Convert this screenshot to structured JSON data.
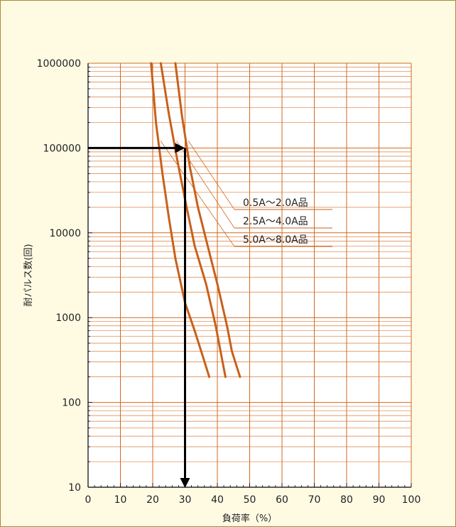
{
  "chart_data": {
    "type": "line",
    "xlabel": "負荷率（%）",
    "ylabel": "耐パルス数(回)",
    "xlim": [
      0,
      100
    ],
    "ylim": [
      10,
      1000000
    ],
    "y_scale": "log",
    "grid": true,
    "x_ticks": [
      "0",
      "10",
      "20",
      "30",
      "40",
      "50",
      "60",
      "70",
      "80",
      "90",
      "100"
    ],
    "y_ticks": [
      "10",
      "100",
      "1000",
      "10000",
      "100000",
      "1000000"
    ],
    "series": [
      {
        "name": "5.0A～8.0A品",
        "color": "#c8601c",
        "points": [
          [
            19.5,
            1000000
          ],
          [
            21,
            200000
          ],
          [
            23,
            50000
          ],
          [
            25,
            15000
          ],
          [
            27,
            5000
          ],
          [
            30,
            1500
          ],
          [
            33,
            700
          ],
          [
            35.5,
            350
          ],
          [
            37.5,
            200
          ]
        ]
      },
      {
        "name": "2.5A～4.0A品",
        "color": "#c8601c",
        "points": [
          [
            22.5,
            1000000
          ],
          [
            25,
            250000
          ],
          [
            28,
            60000
          ],
          [
            30.5,
            20000
          ],
          [
            33,
            7000
          ],
          [
            36.5,
            2500
          ],
          [
            39.5,
            800
          ],
          [
            41,
            400
          ],
          [
            42.5,
            200
          ]
        ]
      },
      {
        "name": "0.5A～2.0A品",
        "color": "#c8601c",
        "points": [
          [
            27,
            1000000
          ],
          [
            29,
            250000
          ],
          [
            31.5,
            60000
          ],
          [
            34,
            20000
          ],
          [
            37,
            7000
          ],
          [
            40,
            2500
          ],
          [
            43,
            800
          ],
          [
            44.5,
            400
          ],
          [
            47,
            200
          ]
        ]
      }
    ],
    "annotation": {
      "x": 30,
      "y": 100000,
      "color": "#000000"
    }
  }
}
